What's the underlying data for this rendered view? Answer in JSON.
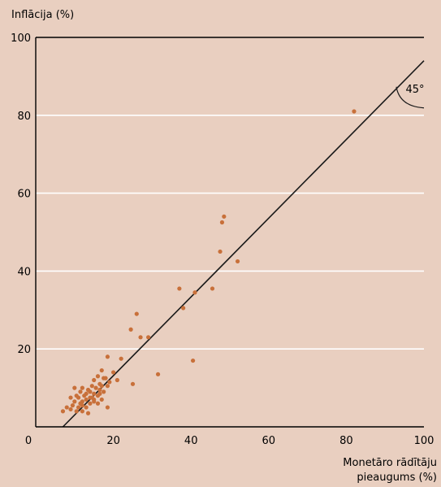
{
  "chart_data": {
    "type": "scatter",
    "ylabel": "Inflācija (%)",
    "xlabel_lines": [
      "Monetāro rādītāju",
      "pieaugums (%)"
    ],
    "xlim": [
      0,
      100
    ],
    "ylim": [
      0,
      100
    ],
    "x_ticks": [
      0,
      20,
      40,
      60,
      80,
      100
    ],
    "y_ticks": [
      20,
      40,
      60,
      80,
      100
    ],
    "grid": "horizontal",
    "reference_line": {
      "from": [
        7,
        0
      ],
      "to": [
        100,
        94
      ]
    },
    "angle_annotation": "45°",
    "colors": {
      "point": "#c8703a",
      "line": "#1a1a1a",
      "background": "#e9cfc0",
      "grid": "#ffffff"
    },
    "points": [
      [
        82,
        81
      ],
      [
        48.5,
        54
      ],
      [
        48,
        52.5
      ],
      [
        47.5,
        45
      ],
      [
        52,
        42.5
      ],
      [
        37,
        35.5
      ],
      [
        45.5,
        35.5
      ],
      [
        41,
        34.5
      ],
      [
        38,
        30.5
      ],
      [
        26,
        29
      ],
      [
        24.5,
        25
      ],
      [
        27,
        23
      ],
      [
        29,
        23
      ],
      [
        40.5,
        17
      ],
      [
        18.5,
        18
      ],
      [
        22,
        17.5
      ],
      [
        31.5,
        13.5
      ],
      [
        20,
        14
      ],
      [
        17,
        14.5
      ],
      [
        21,
        12
      ],
      [
        25,
        11
      ],
      [
        16,
        13
      ],
      [
        17.5,
        12.5
      ],
      [
        18,
        12.5
      ],
      [
        15,
        12
      ],
      [
        19,
        11.5
      ],
      [
        16.5,
        11
      ],
      [
        14.5,
        10.5
      ],
      [
        17,
        10.5
      ],
      [
        18.5,
        10.5
      ],
      [
        12,
        10
      ],
      [
        10,
        10
      ],
      [
        15.5,
        10
      ],
      [
        13.5,
        9.5
      ],
      [
        16.5,
        9.5
      ],
      [
        11.5,
        9
      ],
      [
        14,
        9
      ],
      [
        17.5,
        9
      ],
      [
        13,
        8.5
      ],
      [
        15,
        8.5
      ],
      [
        10.5,
        8
      ],
      [
        12.5,
        8
      ],
      [
        16,
        8
      ],
      [
        14,
        7.5
      ],
      [
        11,
        7.5
      ],
      [
        9,
        7.5
      ],
      [
        13,
        7
      ],
      [
        15,
        7
      ],
      [
        12,
        6.5
      ],
      [
        10,
        6.5
      ],
      [
        16,
        6
      ],
      [
        14,
        6
      ],
      [
        12,
        5.5
      ],
      [
        11,
        5
      ],
      [
        13,
        5
      ],
      [
        18.5,
        5
      ],
      [
        9,
        4.5
      ],
      [
        8,
        5
      ],
      [
        10.5,
        4
      ],
      [
        12,
        4
      ],
      [
        13.5,
        3.5
      ],
      [
        7,
        4
      ],
      [
        15,
        6.5
      ],
      [
        11.5,
        6
      ],
      [
        9.5,
        5.5
      ],
      [
        14.5,
        7.5
      ],
      [
        16.5,
        8.5
      ],
      [
        17,
        7
      ]
    ]
  }
}
